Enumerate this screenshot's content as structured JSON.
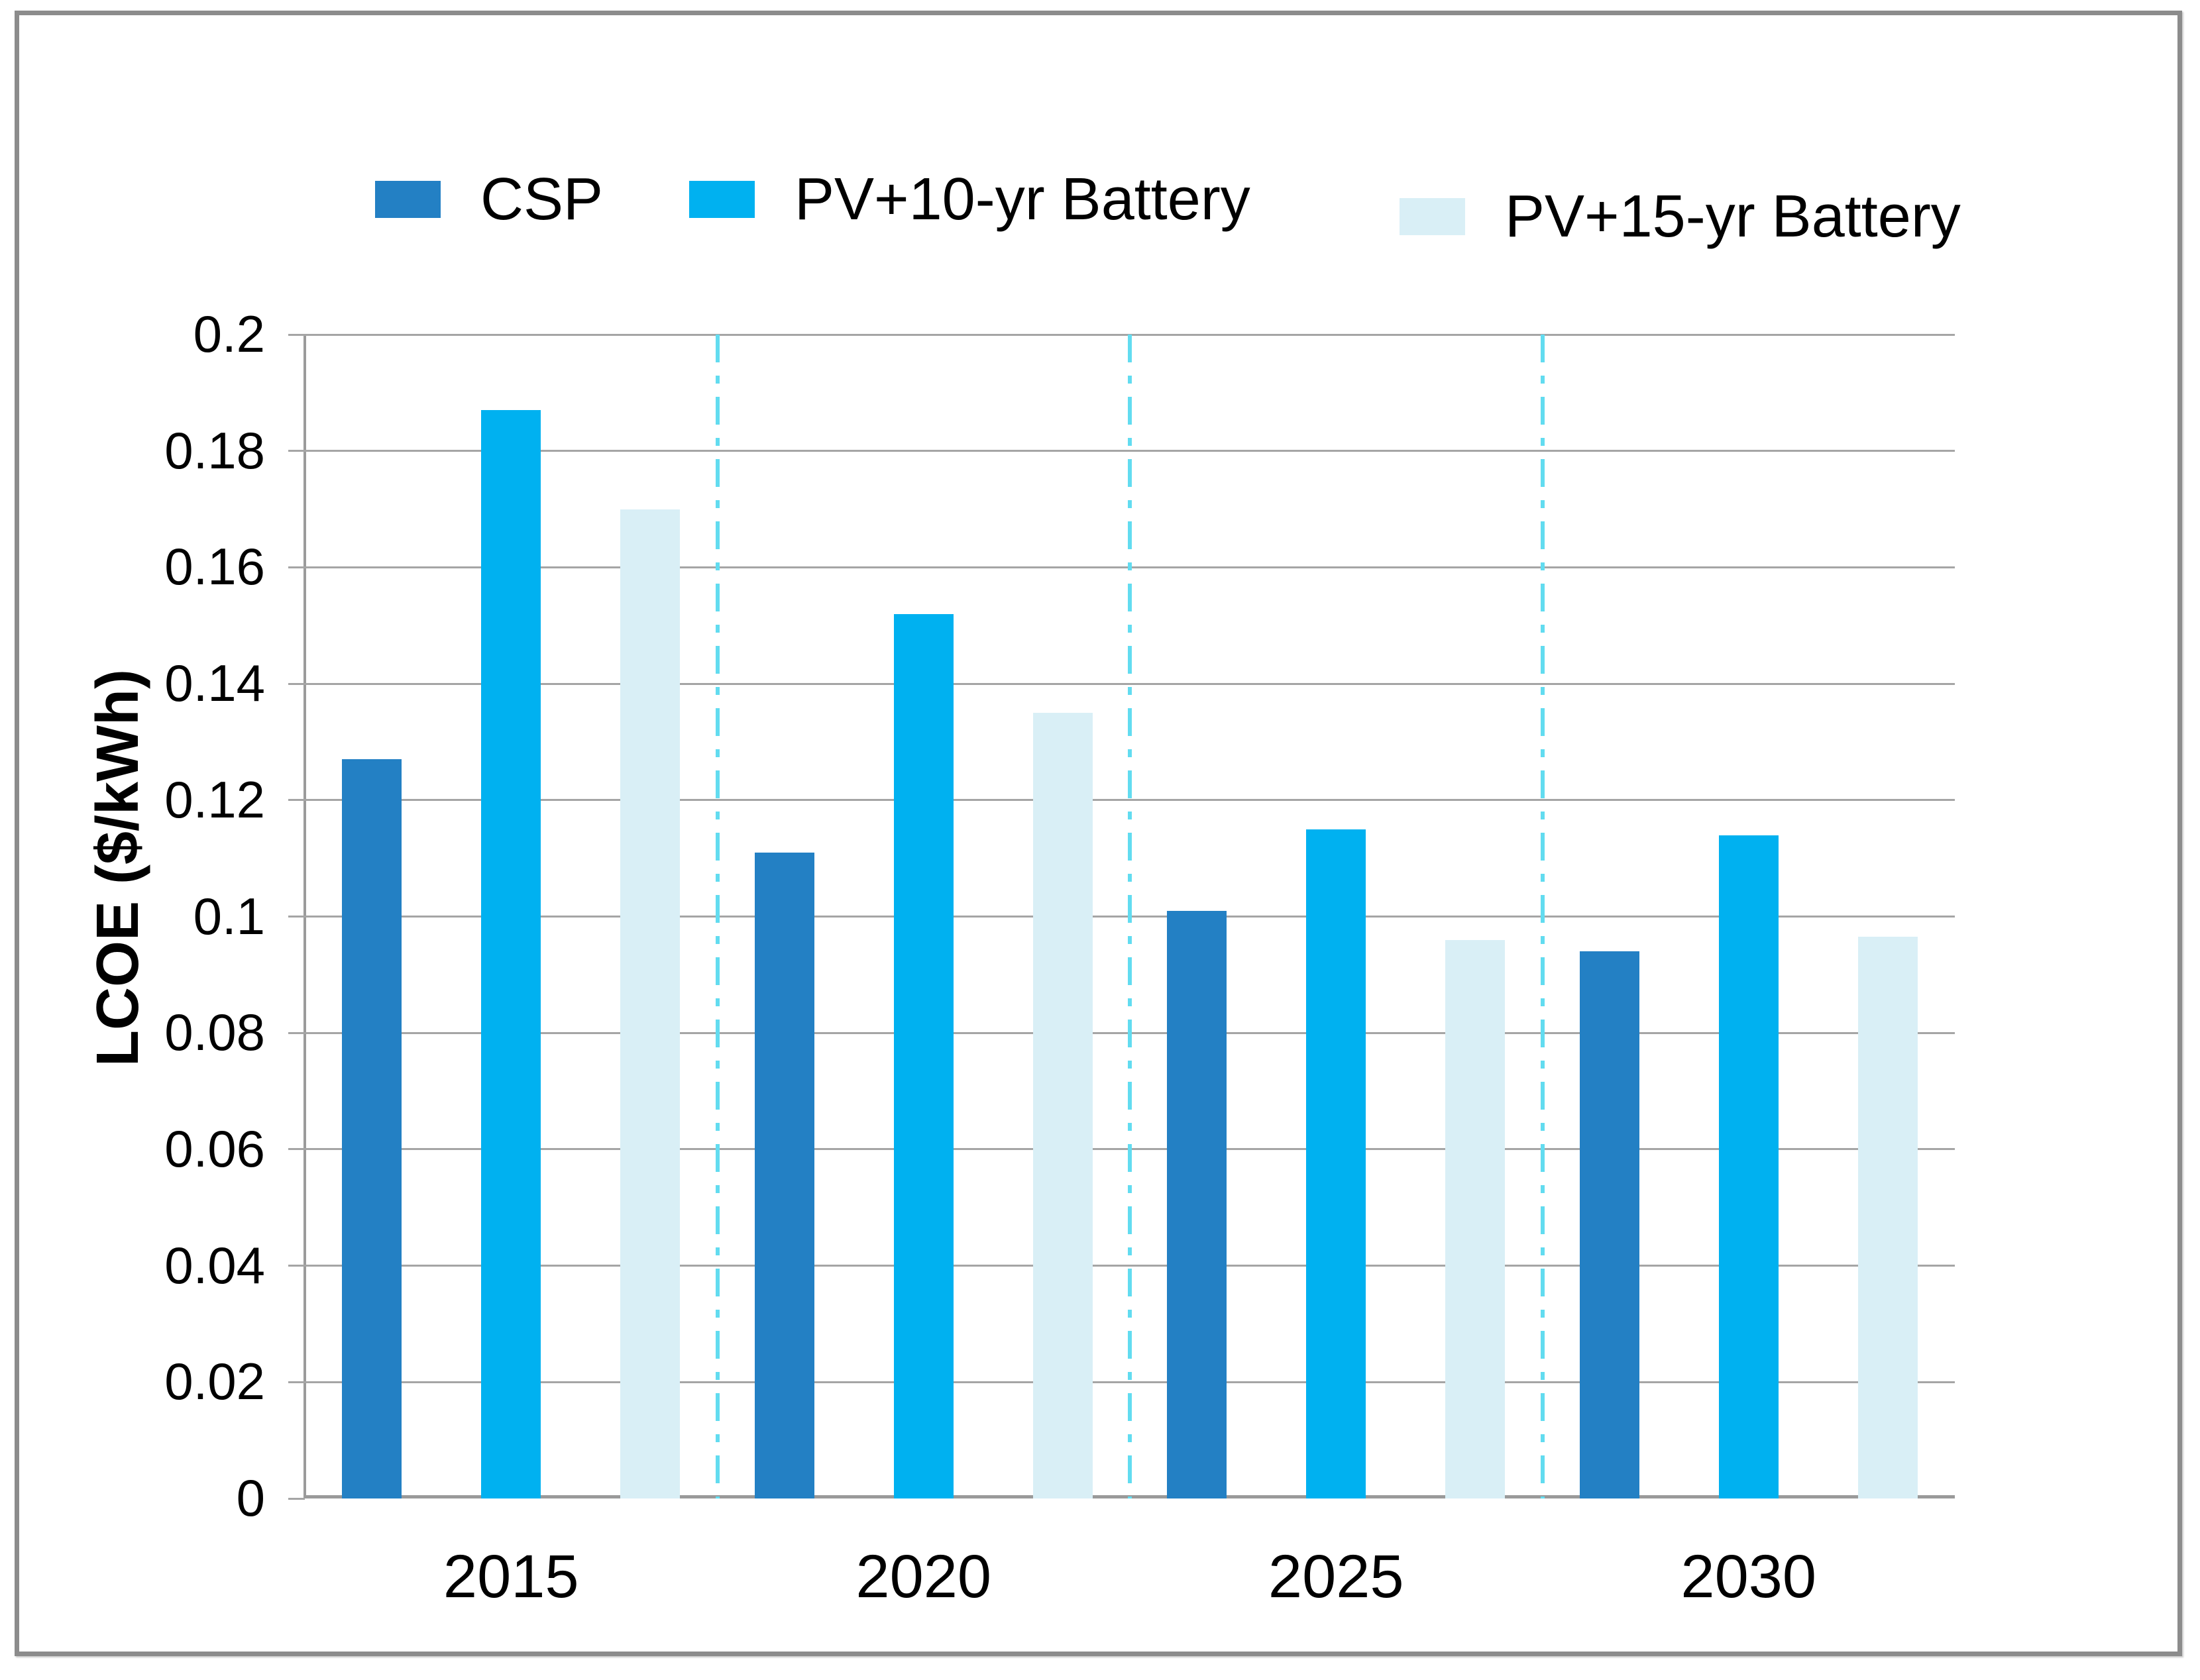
{
  "chart_data": {
    "type": "bar",
    "title": "",
    "categories": [
      "2015",
      "2020",
      "2025",
      "2030"
    ],
    "series": [
      {
        "name": "CSP",
        "color": "#2380c4",
        "values": [
          0.127,
          0.111,
          0.101,
          0.094
        ]
      },
      {
        "name": "PV+10-yr Battery",
        "color": "#00b1f0",
        "values": [
          0.187,
          0.152,
          0.115,
          0.114
        ]
      },
      {
        "name": "PV+15-yr Battery",
        "color": "#d9eff6",
        "values": [
          0.17,
          0.135,
          0.096,
          0.0965
        ]
      }
    ],
    "xlabel": "",
    "ylabel": "LCOE ($/kWh)",
    "ylim": [
      0,
      0.2
    ],
    "ytick_step": 0.02,
    "ytick_labels": [
      "0",
      "0.02",
      "0.04",
      "0.06",
      "0.08",
      "0.1",
      "0.12",
      "0.14",
      "0.16",
      "0.18",
      "0.2"
    ],
    "grid": "horizontal-only",
    "legend_position": "top",
    "group_separators": "dashed vertical lines between year groups",
    "separator_color": "#62dcf0",
    "gridline_color": "#a5a5a5",
    "frame_color": "#8c8c8c"
  }
}
